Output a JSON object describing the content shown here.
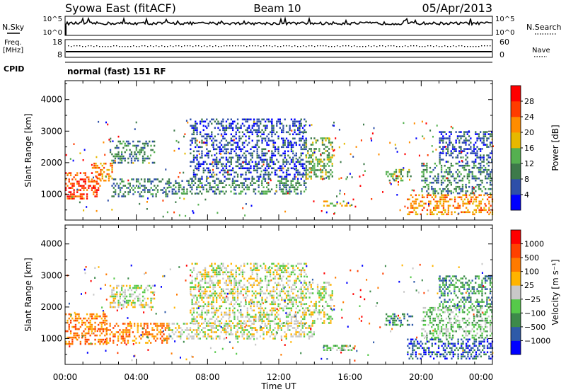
{
  "header": {
    "station": "Syowa East (fitACF)",
    "beam": "Beam 10",
    "date": "05/Apr/2013"
  },
  "status_panels": {
    "nsky_label": "N.Sky",
    "nsearch_label": "N.Search",
    "freq_label_line1": "Freq.",
    "freq_label_line2": "[MHz]",
    "nave_label": "Nave",
    "cpid_label": "CPID",
    "cpid_value": "normal (fast) 151 RF",
    "noise_ticks": [
      "10^5",
      "10^0"
    ],
    "freq_ticks": [
      "18",
      "8"
    ],
    "nave_ticks": [
      "60",
      "0"
    ]
  },
  "chart_data": [
    {
      "type": "heatmap",
      "name": "power-panel",
      "xlabel": "",
      "ylabel": "Slant Range [km]",
      "xlim": [
        0,
        24
      ],
      "ylim": [
        180,
        4600
      ],
      "yticks": [
        1000,
        2000,
        3000,
        4000
      ],
      "xtick_labels": [
        "00:00",
        "04:00",
        "08:00",
        "12:00",
        "16:00",
        "20:00",
        "00:00"
      ],
      "colorbar": {
        "label": "Power [dB]",
        "levels": [
          "4",
          "8",
          "12",
          "16",
          "20",
          "24",
          "28"
        ],
        "colors": [
          "#0000ff",
          "#2e4fa8",
          "#3d7a4a",
          "#55b050",
          "#e6b800",
          "#ff8c00",
          "#ff3c00",
          "#ff0000"
        ]
      },
      "echo_regions": [
        {
          "t0": 0.0,
          "t1": 2.0,
          "r0": 850,
          "r1": 1700,
          "level": 6
        },
        {
          "t0": 1.5,
          "t1": 2.6,
          "r0": 1400,
          "r1": 2000,
          "level": 5
        },
        {
          "t0": 2.6,
          "t1": 5.8,
          "r0": 900,
          "r1": 1500,
          "level": 2
        },
        {
          "t0": 2.5,
          "t1": 5.0,
          "r0": 2000,
          "r1": 2700,
          "level": 2
        },
        {
          "t0": 5.8,
          "t1": 13.5,
          "r0": 1000,
          "r1": 1450,
          "level": 2
        },
        {
          "t0": 7.0,
          "t1": 13.5,
          "r0": 1500,
          "r1": 3400,
          "level": 1
        },
        {
          "t0": 13.5,
          "t1": 15.0,
          "r0": 1500,
          "r1": 2800,
          "level": 3
        },
        {
          "t0": 14.5,
          "t1": 16.2,
          "r0": 600,
          "r1": 800,
          "level": 4
        },
        {
          "t0": 18.0,
          "t1": 19.5,
          "r0": 1400,
          "r1": 1800,
          "level": 3
        },
        {
          "t0": 19.2,
          "t1": 24.0,
          "r0": 350,
          "r1": 1000,
          "level": 5
        },
        {
          "t0": 20.0,
          "t1": 24.0,
          "r0": 1000,
          "r1": 2000,
          "level": 2
        },
        {
          "t0": 21.0,
          "t1": 24.0,
          "r0": 2000,
          "r1": 3000,
          "level": 1
        }
      ]
    },
    {
      "type": "heatmap",
      "name": "velocity-panel",
      "xlabel": "Time UT",
      "ylabel": "Slant Range [km]",
      "xlim": [
        0,
        24
      ],
      "ylim": [
        180,
        4600
      ],
      "yticks": [
        1000,
        2000,
        3000,
        4000
      ],
      "xtick_labels": [
        "00:00",
        "04:00",
        "08:00",
        "12:00",
        "16:00",
        "20:00",
        "00:00"
      ],
      "colorbar": {
        "label": "Velocity [m s⁻¹]",
        "levels": [
          "1000",
          "500",
          "100",
          "25",
          "−25",
          "−100",
          "−500",
          "−1000"
        ],
        "colors": [
          "#0000ff",
          "#2e5aa8",
          "#3d8a4a",
          "#56c94a",
          "#c8c8c8",
          "#ffb400",
          "#ff7a00",
          "#ff4000",
          "#ff0000"
        ]
      },
      "echo_regions": [
        {
          "t0": 0.0,
          "t1": 2.3,
          "r0": 850,
          "r1": 1800,
          "level": 6
        },
        {
          "t0": 2.3,
          "t1": 5.8,
          "r0": 850,
          "r1": 1500,
          "level": 6
        },
        {
          "t0": 2.5,
          "t1": 5.0,
          "r0": 2000,
          "r1": 2700,
          "level": 4
        },
        {
          "t0": 5.8,
          "t1": 14.0,
          "r0": 1000,
          "r1": 1500,
          "level": 4
        },
        {
          "t0": 7.0,
          "t1": 13.5,
          "r0": 1500,
          "r1": 3400,
          "level": 4
        },
        {
          "t0": 13.5,
          "t1": 15.0,
          "r0": 1500,
          "r1": 2800,
          "level": 4
        },
        {
          "t0": 14.5,
          "t1": 16.2,
          "r0": 600,
          "r1": 800,
          "level": 3
        },
        {
          "t0": 18.0,
          "t1": 19.5,
          "r0": 1400,
          "r1": 1800,
          "level": 2
        },
        {
          "t0": 19.2,
          "t1": 24.0,
          "r0": 350,
          "r1": 1000,
          "level": 1
        },
        {
          "t0": 20.0,
          "t1": 24.0,
          "r0": 1000,
          "r1": 2000,
          "level": 3
        },
        {
          "t0": 21.0,
          "t1": 24.0,
          "r0": 2000,
          "r1": 3000,
          "level": 2
        }
      ]
    }
  ]
}
